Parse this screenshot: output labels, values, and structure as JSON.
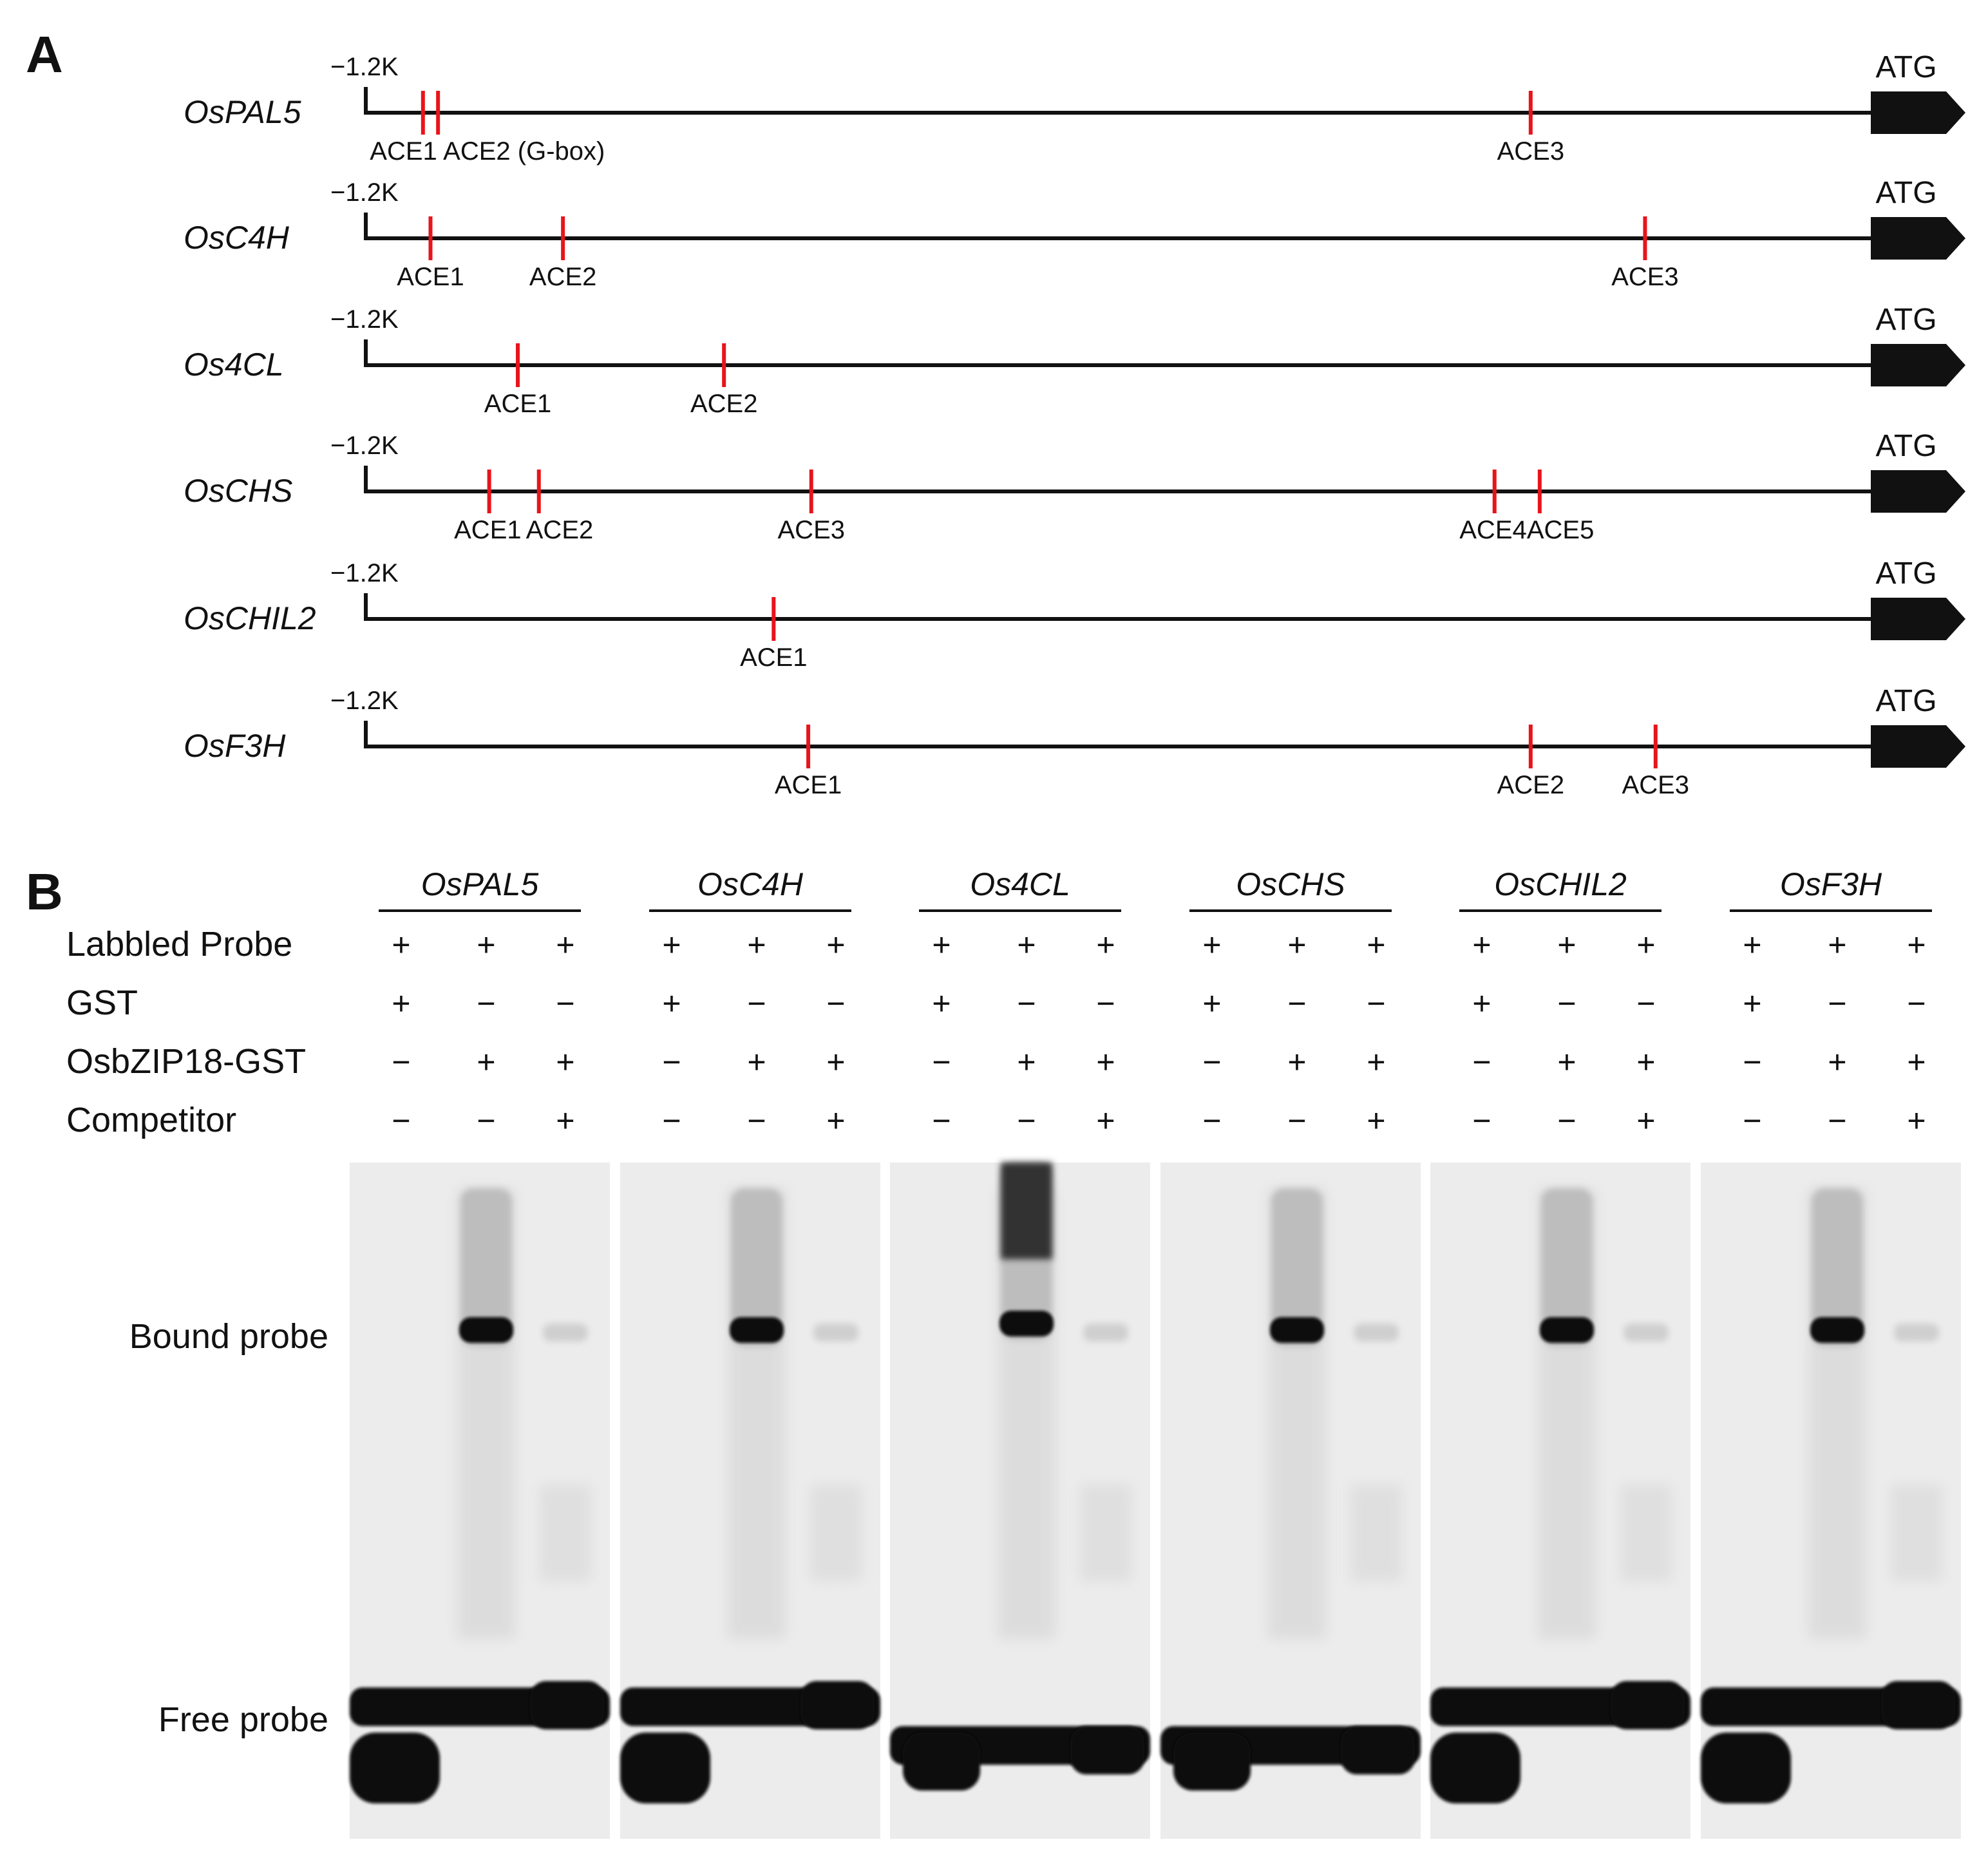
{
  "panel_a": {
    "label": "A",
    "start_label": "−1.2K",
    "end_label": "ATG",
    "promoters": [
      {
        "gene": "OsPAL5",
        "sites": [
          {
            "label": "ACE1",
            "pos": 0.038
          },
          {
            "label": "ACE2 (G-box)",
            "pos": 0.048
          },
          {
            "label": "ACE3",
            "pos": 0.774
          }
        ]
      },
      {
        "gene": "OsC4H",
        "sites": [
          {
            "label": "ACE1",
            "pos": 0.043
          },
          {
            "label": "ACE2",
            "pos": 0.131
          },
          {
            "label": "ACE3",
            "pos": 0.85
          }
        ]
      },
      {
        "gene": "Os4CL",
        "sites": [
          {
            "label": "ACE1",
            "pos": 0.101
          },
          {
            "label": "ACE2",
            "pos": 0.238
          }
        ]
      },
      {
        "gene": "OsCHS",
        "sites": [
          {
            "label": "ACE1",
            "pos": 0.082
          },
          {
            "label": "ACE2",
            "pos": 0.115
          },
          {
            "label": "ACE3",
            "pos": 0.296
          },
          {
            "label": "ACE4",
            "pos": 0.75
          },
          {
            "label": "ACE5",
            "pos": 0.78
          }
        ]
      },
      {
        "gene": "OsCHIL2",
        "sites": [
          {
            "label": "ACE1",
            "pos": 0.271
          }
        ]
      },
      {
        "gene": "OsF3H",
        "sites": [
          {
            "label": "ACE1",
            "pos": 0.294
          },
          {
            "label": "ACE2",
            "pos": 0.774
          },
          {
            "label": "ACE3",
            "pos": 0.857
          }
        ]
      }
    ]
  },
  "panel_b": {
    "label": "B",
    "genes": [
      "OsPAL5",
      "OsC4H",
      "Os4CL",
      "OsCHS",
      "OsCHIL2",
      "OsF3H"
    ],
    "rows": [
      {
        "label": "Labbled Probe",
        "signs": [
          "+",
          "+",
          "+"
        ]
      },
      {
        "label": "GST",
        "signs": [
          "+",
          "−",
          "−"
        ]
      },
      {
        "label": "OsbZIP18-GST",
        "signs": [
          "−",
          "+",
          "+"
        ]
      },
      {
        "label": "Competitor",
        "signs": [
          "−",
          "−",
          "+"
        ]
      }
    ],
    "side_labels": {
      "bound": "Bound probe",
      "free": "Free probe"
    }
  },
  "colors": {
    "site": "#e8141b",
    "line": "#111111",
    "gel": "#ececec",
    "band": "#0a0a0a"
  }
}
